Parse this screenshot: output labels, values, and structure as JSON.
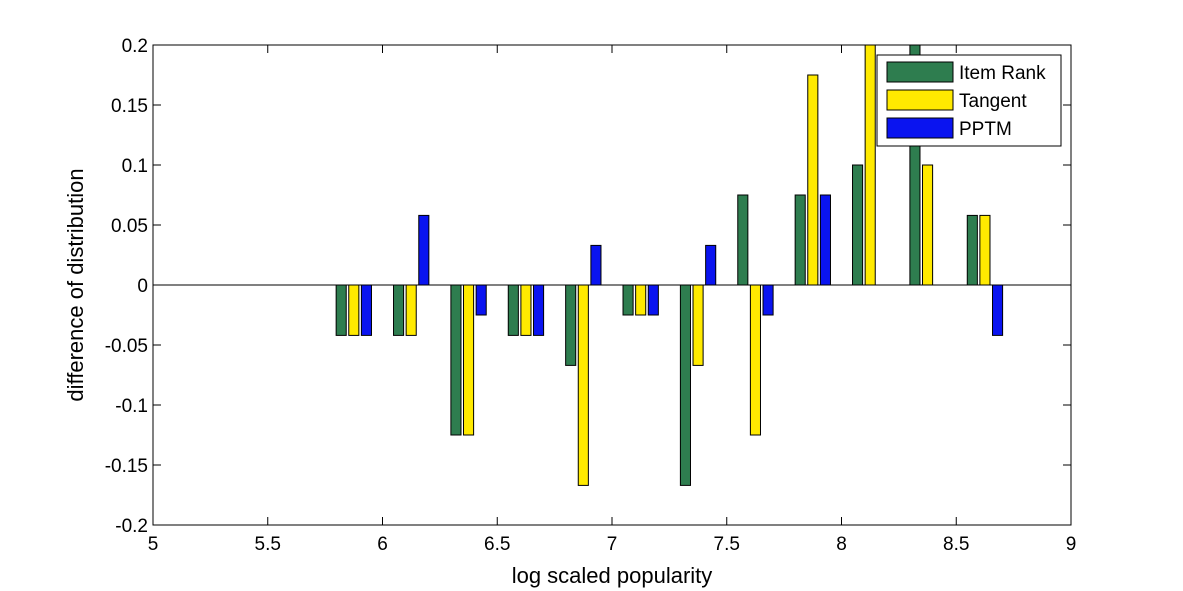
{
  "chart_data": {
    "type": "bar",
    "title": "",
    "xlabel": "log scaled popularity",
    "ylabel": "difference of distribution",
    "xlim": [
      5,
      9
    ],
    "ylim": [
      -0.2,
      0.2
    ],
    "x_ticks": [
      "5",
      "5.5",
      "6",
      "6.5",
      "7",
      "7.5",
      "8",
      "8.5",
      "9"
    ],
    "y_ticks": [
      "-0.2",
      "-0.15",
      "-0.1",
      "-0.05",
      "0",
      "0.05",
      "0.1",
      "0.15",
      "0.2"
    ],
    "grid": false,
    "legend_position": "top-right",
    "x": [
      5.875,
      6.125,
      6.375,
      6.625,
      6.875,
      7.125,
      7.375,
      7.625,
      7.875,
      8.125,
      8.375,
      8.625
    ],
    "series": [
      {
        "name": "Item Rank",
        "color": "#2e7d4f",
        "values": [
          -0.042,
          -0.042,
          -0.125,
          -0.042,
          -0.067,
          -0.025,
          -0.167,
          0.075,
          0.075,
          0.1,
          0.2,
          0.058
        ]
      },
      {
        "name": "Tangent",
        "color": "#ffea00",
        "values": [
          -0.042,
          -0.042,
          -0.125,
          -0.042,
          -0.167,
          -0.025,
          -0.067,
          -0.125,
          0.175,
          0.2,
          0.1,
          0.058
        ]
      },
      {
        "name": "PPTM",
        "color": "#0a14f0",
        "values": [
          -0.042,
          0.058,
          -0.025,
          -0.042,
          0.033,
          -0.025,
          0.033,
          -0.025,
          0.075,
          0.0,
          0.0,
          -0.042
        ]
      }
    ]
  }
}
